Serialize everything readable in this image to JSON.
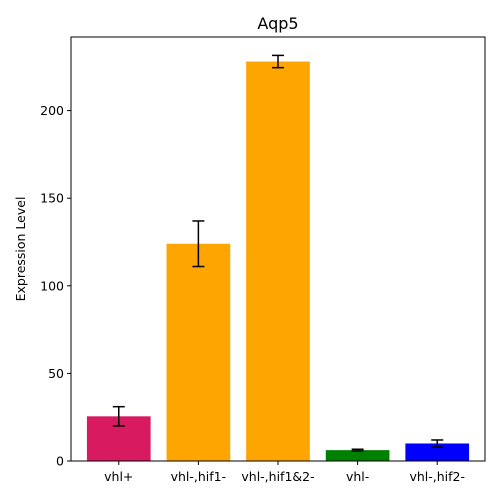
{
  "chart_data": {
    "type": "bar",
    "title": "Aqp5",
    "xlabel": "",
    "ylabel": "Expression Level",
    "categories": [
      "vhl+",
      "vhl-,hif1-",
      "vhl-,hif1&2-",
      "vhl-",
      "vhl-,hif2-"
    ],
    "values": [
      25.5,
      124,
      228,
      6.2,
      10
    ],
    "errors": [
      5.5,
      13,
      3.5,
      0.5,
      2
    ],
    "colors": [
      "#d81b60",
      "#ffa500",
      "#ffa500",
      "#008000",
      "#0000ff"
    ],
    "ylim": [
      0,
      242
    ],
    "yticks": [
      0,
      50,
      100,
      150,
      200
    ],
    "grid": false,
    "legend": "none"
  }
}
